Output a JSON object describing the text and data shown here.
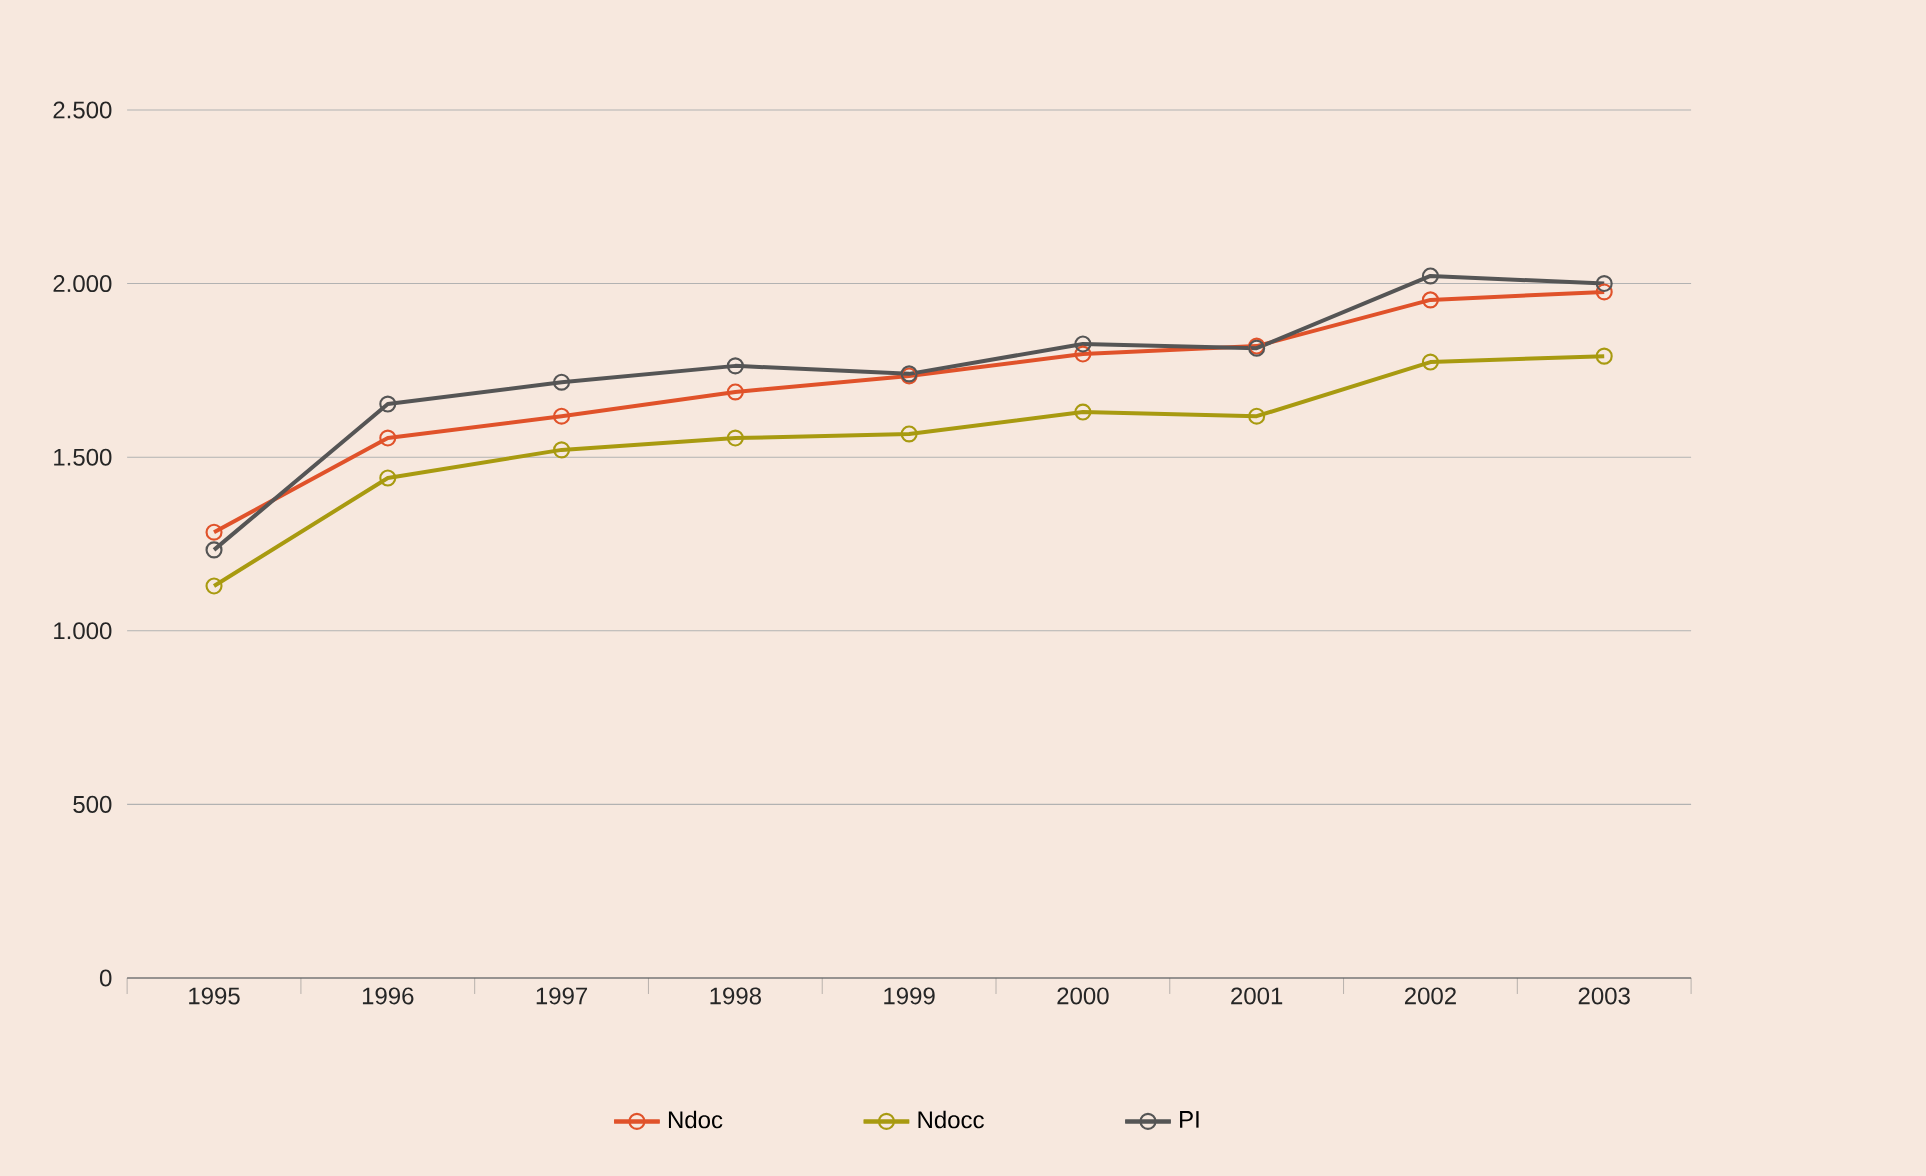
{
  "chart_data": {
    "type": "line",
    "categories": [
      "1995",
      "1996",
      "1997",
      "1998",
      "1999",
      "2000",
      "2001",
      "2002",
      "2003"
    ],
    "series": [
      {
        "name": "Ndoc",
        "color": "#e0522a",
        "values": [
          1284,
          1555,
          1618,
          1688,
          1734,
          1797,
          1820,
          1953,
          1976
        ]
      },
      {
        "name": "Ndocc",
        "color": "#a89a10",
        "values": [
          1129,
          1440,
          1521,
          1555,
          1567,
          1630,
          1618,
          1774,
          1791
        ]
      },
      {
        "name": "PI",
        "color": "#555555",
        "values": [
          1233,
          1653,
          1716,
          1763,
          1740,
          1826,
          1814,
          2022,
          2000
        ]
      }
    ],
    "ylim": [
      0,
      2500
    ],
    "yticks": [
      {
        "value": 0,
        "label": "0"
      },
      {
        "value": 500,
        "label": "500"
      },
      {
        "value": 1000,
        "label": "1.000"
      },
      {
        "value": 1500,
        "label": "1.500"
      },
      {
        "value": 2000,
        "label": "2.000"
      },
      {
        "value": 2500,
        "label": "2.500"
      }
    ],
    "grid": "y",
    "legend": "bottom",
    "marker": "circle",
    "line_style": "solid"
  }
}
